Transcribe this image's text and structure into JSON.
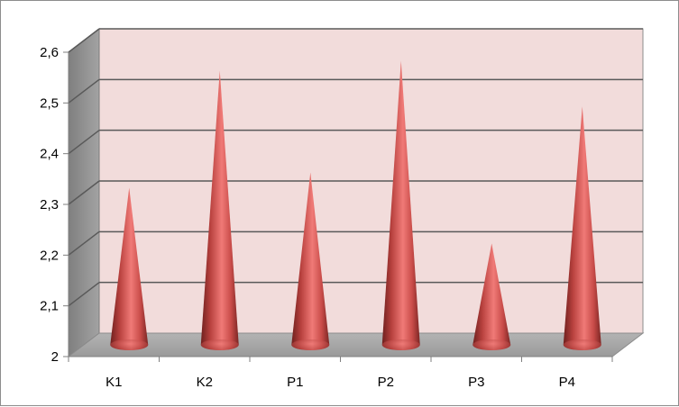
{
  "chart_data": {
    "type": "bar",
    "bar_shape": "cone",
    "categories": [
      "K1",
      "K2",
      "P1",
      "P2",
      "P3",
      "P4"
    ],
    "values": [
      2.31,
      2.54,
      2.34,
      2.56,
      2.2,
      2.47
    ],
    "ylim": [
      2,
      2.6
    ],
    "yticks": [
      "2",
      "2,1",
      "2,2",
      "2,3",
      "2,4",
      "2,5",
      "2,6"
    ],
    "title": "",
    "xlabel": "",
    "ylabel": "",
    "grid": true,
    "legend": "none",
    "colors": {
      "bar": "#c0504d",
      "back_wall": "#f2dcdb",
      "side_wall": "#969696",
      "floor": "#a6a6a6",
      "gridline": "#595959"
    }
  }
}
